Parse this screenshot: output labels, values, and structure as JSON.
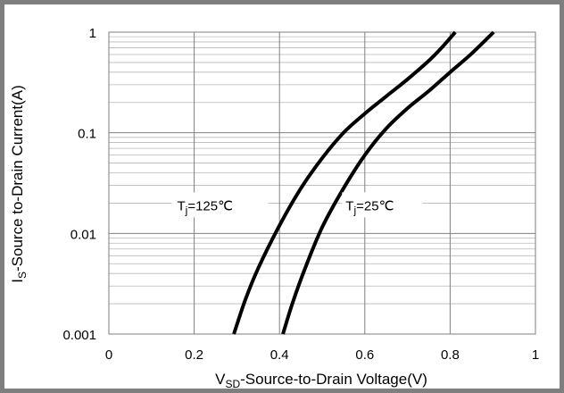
{
  "chart_data": {
    "type": "line",
    "title": "",
    "xlabel": {
      "main": "V",
      "sub": "SD",
      "rest": "-Source-to-Drain Voltage(V)"
    },
    "ylabel": {
      "main": "I",
      "sub": "S",
      "rest": "-Source  to-Drain Current(A)"
    },
    "x_scale": "linear",
    "y_scale": "log",
    "xlim": [
      0,
      1
    ],
    "ylim": [
      0.001,
      1
    ],
    "x_ticks": [
      "0",
      "0.2",
      "0.4",
      "0.6",
      "0.8",
      "1"
    ],
    "x_tick_values": [
      0,
      0.2,
      0.4,
      0.6,
      0.8,
      1
    ],
    "y_ticks": [
      "1",
      "0.1",
      "0.01",
      "0.001"
    ],
    "y_tick_values": [
      1,
      0.1,
      0.01,
      0.001
    ],
    "grid": {
      "x_major": true,
      "y_major": true,
      "y_minor": true
    },
    "series": [
      {
        "name": {
          "main": "T",
          "sub": "j",
          "rest": "=125℃"
        },
        "color": "#000000",
        "points": [
          [
            0.293,
            0.001
          ],
          [
            0.32,
            0.0022
          ],
          [
            0.35,
            0.0045
          ],
          [
            0.4,
            0.012
          ],
          [
            0.45,
            0.028
          ],
          [
            0.5,
            0.056
          ],
          [
            0.55,
            0.1
          ],
          [
            0.6,
            0.155
          ],
          [
            0.65,
            0.23
          ],
          [
            0.7,
            0.34
          ],
          [
            0.75,
            0.52
          ],
          [
            0.78,
            0.7
          ],
          [
            0.812,
            1.0
          ]
        ]
      },
      {
        "name": {
          "main": "T",
          "sub": "j",
          "rest": "=25℃"
        },
        "color": "#000000",
        "points": [
          [
            0.408,
            0.001
          ],
          [
            0.43,
            0.002
          ],
          [
            0.46,
            0.0045
          ],
          [
            0.5,
            0.0115
          ],
          [
            0.55,
            0.028
          ],
          [
            0.6,
            0.06
          ],
          [
            0.65,
            0.11
          ],
          [
            0.7,
            0.175
          ],
          [
            0.75,
            0.26
          ],
          [
            0.8,
            0.4
          ],
          [
            0.85,
            0.61
          ],
          [
            0.902,
            1.0
          ]
        ]
      }
    ]
  }
}
